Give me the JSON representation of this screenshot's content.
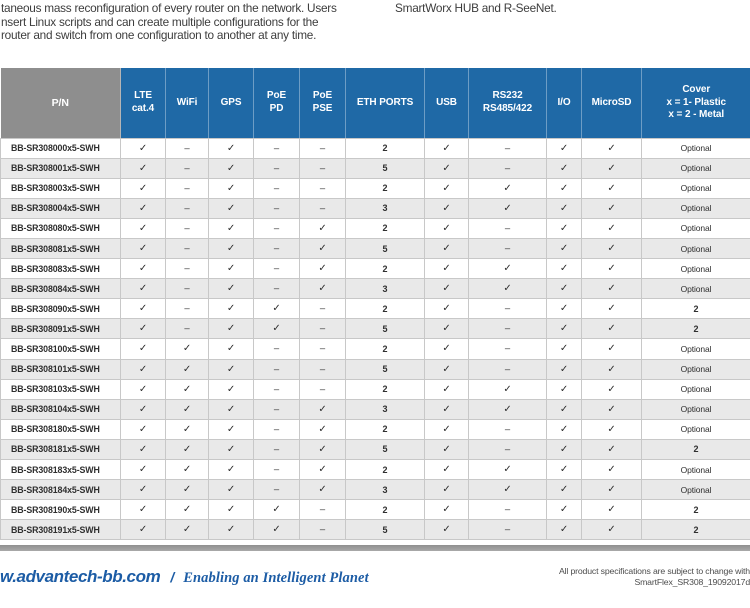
{
  "intro": {
    "left_lines": [
      "taneous mass reconfiguration of every router on the network. Users",
      "nsert Linux scripts and can create multiple configurations for the",
      "router and switch from one configuration to another at any time."
    ],
    "right_line": "SmartWorx HUB and R-SeeNet."
  },
  "table": {
    "headers": [
      "P/N",
      "LTE\ncat.4",
      "WiFi",
      "GPS",
      "PoE\nPD",
      "PoE\nPSE",
      "ETH PORTS",
      "USB",
      "RS232\nRS485/422",
      "I/O",
      "MicroSD",
      "Cover\nx = 1- Plastic\nx = 2 - Metal"
    ],
    "check_symbol": "✓",
    "dash_symbol": "–",
    "rows": [
      {
        "pn": "BB-SR308000x5-SWH",
        "values": [
          "✓",
          "–",
          "✓",
          "–",
          "–",
          "2",
          "✓",
          "–",
          "✓",
          "✓",
          "Optional"
        ]
      },
      {
        "pn": "BB-SR308001x5-SWH",
        "values": [
          "✓",
          "–",
          "✓",
          "–",
          "–",
          "5",
          "✓",
          "–",
          "✓",
          "✓",
          "Optional"
        ]
      },
      {
        "pn": "BB-SR308003x5-SWH",
        "values": [
          "✓",
          "–",
          "✓",
          "–",
          "–",
          "2",
          "✓",
          "✓",
          "✓",
          "✓",
          "Optional"
        ]
      },
      {
        "pn": "BB-SR308004x5-SWH",
        "values": [
          "✓",
          "–",
          "✓",
          "–",
          "–",
          "3",
          "✓",
          "✓",
          "✓",
          "✓",
          "Optional"
        ]
      },
      {
        "pn": "BB-SR308080x5-SWH",
        "values": [
          "✓",
          "–",
          "✓",
          "–",
          "✓",
          "2",
          "✓",
          "–",
          "✓",
          "✓",
          "Optional"
        ]
      },
      {
        "pn": "BB-SR308081x5-SWH",
        "values": [
          "✓",
          "–",
          "✓",
          "–",
          "✓",
          "5",
          "✓",
          "–",
          "✓",
          "✓",
          "Optional"
        ]
      },
      {
        "pn": "BB-SR308083x5-SWH",
        "values": [
          "✓",
          "–",
          "✓",
          "–",
          "✓",
          "2",
          "✓",
          "✓",
          "✓",
          "✓",
          "Optional"
        ]
      },
      {
        "pn": "BB-SR308084x5-SWH",
        "values": [
          "✓",
          "–",
          "✓",
          "–",
          "✓",
          "3",
          "✓",
          "✓",
          "✓",
          "✓",
          "Optional"
        ]
      },
      {
        "pn": "BB-SR308090x5-SWH",
        "values": [
          "✓",
          "–",
          "✓",
          "✓",
          "–",
          "2",
          "✓",
          "–",
          "✓",
          "✓",
          "2"
        ]
      },
      {
        "pn": "BB-SR308091x5-SWH",
        "values": [
          "✓",
          "–",
          "✓",
          "✓",
          "–",
          "5",
          "✓",
          "–",
          "✓",
          "✓",
          "2"
        ]
      },
      {
        "pn": "BB-SR308100x5-SWH",
        "values": [
          "✓",
          "✓",
          "✓",
          "–",
          "–",
          "2",
          "✓",
          "–",
          "✓",
          "✓",
          "Optional"
        ]
      },
      {
        "pn": "BB-SR308101x5-SWH",
        "values": [
          "✓",
          "✓",
          "✓",
          "–",
          "–",
          "5",
          "✓",
          "–",
          "✓",
          "✓",
          "Optional"
        ]
      },
      {
        "pn": "BB-SR308103x5-SWH",
        "values": [
          "✓",
          "✓",
          "✓",
          "–",
          "–",
          "2",
          "✓",
          "✓",
          "✓",
          "✓",
          "Optional"
        ]
      },
      {
        "pn": "BB-SR308104x5-SWH",
        "values": [
          "✓",
          "✓",
          "✓",
          "–",
          "✓",
          "3",
          "✓",
          "✓",
          "✓",
          "✓",
          "Optional"
        ]
      },
      {
        "pn": "BB-SR308180x5-SWH",
        "values": [
          "✓",
          "✓",
          "✓",
          "–",
          "✓",
          "2",
          "✓",
          "–",
          "✓",
          "✓",
          "Optional"
        ]
      },
      {
        "pn": "BB-SR308181x5-SWH",
        "values": [
          "✓",
          "✓",
          "✓",
          "–",
          "✓",
          "5",
          "✓",
          "–",
          "✓",
          "✓",
          "2"
        ]
      },
      {
        "pn": "BB-SR308183x5-SWH",
        "values": [
          "✓",
          "✓",
          "✓",
          "–",
          "✓",
          "2",
          "✓",
          "✓",
          "✓",
          "✓",
          "Optional"
        ]
      },
      {
        "pn": "BB-SR308184x5-SWH",
        "values": [
          "✓",
          "✓",
          "✓",
          "–",
          "✓",
          "3",
          "✓",
          "✓",
          "✓",
          "✓",
          "Optional"
        ]
      },
      {
        "pn": "BB-SR308190x5-SWH",
        "values": [
          "✓",
          "✓",
          "✓",
          "✓",
          "–",
          "2",
          "✓",
          "–",
          "✓",
          "✓",
          "2"
        ]
      },
      {
        "pn": "BB-SR308191x5-SWH",
        "values": [
          "✓",
          "✓",
          "✓",
          "✓",
          "–",
          "5",
          "✓",
          "–",
          "✓",
          "✓",
          "2"
        ]
      }
    ]
  },
  "footer": {
    "website": "w.advantech-bb.com",
    "separator": "/",
    "slogan": "Enabling an Intelligent Planet",
    "note_line1": "All product specifications are subject to change with",
    "note_line2": "SmartFlex_SR308_19092017d"
  },
  "colors": {
    "header_blue": "#1f69a6",
    "header_gray": "#8e8e8e",
    "footer_blue": "#1c5ca5",
    "row_alt": "#e9e9e9"
  }
}
